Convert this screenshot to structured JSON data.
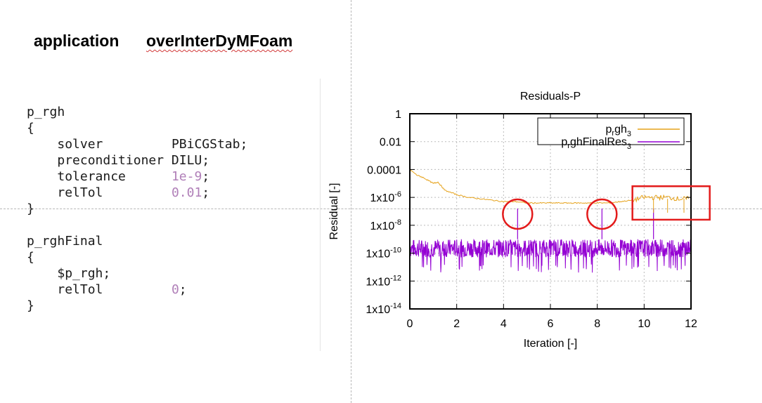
{
  "application": {
    "label": "application",
    "value": "overInterDyMFoam"
  },
  "code": {
    "lines": [
      {
        "key": "p_rgh",
        "indent": 0
      },
      {
        "key": "{",
        "indent": 0
      },
      {
        "key": "solver",
        "value": "PBiCGStab;",
        "indent": 1
      },
      {
        "key": "preconditioner",
        "value": "DILU;",
        "indent": 1
      },
      {
        "key": "tolerance",
        "value": "1e-9",
        "suffix": ";",
        "indent": 1,
        "numeric": true
      },
      {
        "key": "relTol",
        "value": "0.01",
        "suffix": ";",
        "indent": 1,
        "numeric": true
      },
      {
        "key": "}",
        "indent": 0
      },
      {
        "key": "",
        "indent": 0
      },
      {
        "key": "p_rghFinal",
        "indent": 0
      },
      {
        "key": "{",
        "indent": 0
      },
      {
        "key": "$p_rgh;",
        "indent": 1
      },
      {
        "key": "relTol",
        "value": "0",
        "suffix": ";",
        "indent": 1,
        "numeric": true
      },
      {
        "key": "}",
        "indent": 0
      }
    ]
  },
  "chart_data": {
    "type": "line",
    "title": "Residuals-P",
    "xlabel": "Iteration [-]",
    "ylabel": "Residual [-]",
    "xlim": [
      0,
      12
    ],
    "ylim_log10": [
      -14,
      0
    ],
    "log_y": true,
    "grid": true,
    "legend_position": "top-right",
    "x_ticks": [
      0,
      2,
      4,
      6,
      8,
      10,
      12
    ],
    "y_ticks": [
      {
        "exp": 0,
        "label": "1"
      },
      {
        "exp": -2,
        "label": "0.01"
      },
      {
        "exp": -4,
        "label": "0.0001"
      },
      {
        "exp": -6,
        "base": "1x10",
        "sup": "-6"
      },
      {
        "exp": -8,
        "base": "1x10",
        "sup": "-8"
      },
      {
        "exp": -10,
        "base": "1x10",
        "sup": "-10"
      },
      {
        "exp": -12,
        "base": "1x10",
        "sup": "-12"
      },
      {
        "exp": -14,
        "base": "1x10",
        "sup": "-14"
      }
    ],
    "series": [
      {
        "name_parts": [
          "p",
          "r",
          "gh",
          "3"
        ],
        "color": "#e6a21a",
        "x": [
          0,
          0.3,
          0.6,
          1.0,
          1.2,
          1.5,
          2.0,
          2.5,
          3.0,
          3.5,
          4.0,
          4.5,
          5.0,
          5.5,
          6.0,
          6.5,
          7.0,
          7.5,
          8.0,
          8.5,
          9.0,
          9.5,
          10.0,
          10.5,
          11.0,
          11.5,
          11.9
        ],
        "log10_values": [
          -4.0,
          -4.4,
          -4.6,
          -5.0,
          -4.9,
          -5.5,
          -5.8,
          -6.0,
          -6.1,
          -6.2,
          -6.3,
          -6.3,
          -6.4,
          -6.4,
          -6.4,
          -6.4,
          -6.4,
          -6.4,
          -6.4,
          -6.4,
          -6.3,
          -6.2,
          -6.0,
          -6.0,
          -6.0,
          -6.1,
          -6.1
        ]
      },
      {
        "name_parts": [
          "p",
          "r",
          "ghFinalRes",
          "3"
        ],
        "color": "#9400d3",
        "x": [
          0,
          12
        ],
        "log10_values": [
          -9.6,
          -9.6
        ],
        "band_log10": [
          -10.3,
          -9.0
        ],
        "dips_log10": -10.8,
        "spikes_x": [
          4.6,
          8.2,
          10.4
        ],
        "spikes_log10": -6.8
      }
    ],
    "annotations": [
      {
        "shape": "circle",
        "x": 4.6,
        "log10_y": -7.2
      },
      {
        "shape": "circle",
        "x": 8.2,
        "log10_y": -7.2
      },
      {
        "shape": "rect",
        "x0": 9.5,
        "x1": 12.8,
        "log10_y0": -5.2,
        "log10_y1": -7.6
      }
    ]
  }
}
